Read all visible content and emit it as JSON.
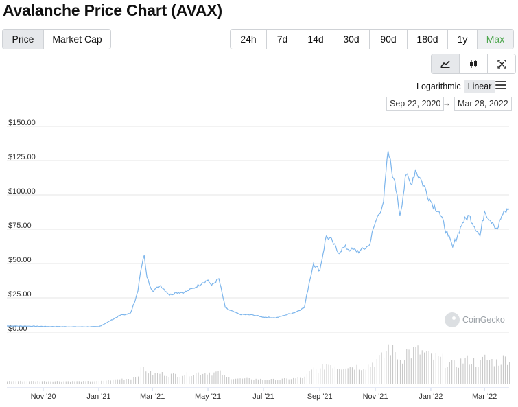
{
  "title": "Avalanche Price Chart (AVAX)",
  "type_tabs": [
    {
      "label": "Price",
      "active": true
    },
    {
      "label": "Market Cap",
      "active": false
    }
  ],
  "range_tabs": [
    {
      "label": "24h"
    },
    {
      "label": "7d"
    },
    {
      "label": "14d"
    },
    {
      "label": "30d"
    },
    {
      "label": "90d"
    },
    {
      "label": "180d"
    },
    {
      "label": "1y"
    },
    {
      "label": "Max",
      "active": true
    }
  ],
  "view_icons": [
    "line-chart-icon",
    "candlestick-icon",
    "fullscreen-icon"
  ],
  "scale": {
    "log": "Logarithmic",
    "linear": "Linear",
    "selected": "Linear"
  },
  "date_from": "Sep 22, 2020",
  "date_to": "Mar 28, 2022",
  "date_arrow": "→",
  "watermark": "CoinGecko",
  "colors": {
    "line": "#7cb5ec",
    "volume": "#c8c8c8",
    "grid": "#e6e6e6",
    "active_range": "#4ca64c"
  },
  "chart_data": {
    "type": "line",
    "y_ticks": [
      "$0.00",
      "$25.00",
      "$50.00",
      "$75.00",
      "$100.00",
      "$125.00",
      "$150.00"
    ],
    "ylim": [
      0,
      150
    ],
    "x_ticks": [
      "Nov '20",
      "Jan '21",
      "Mar '21",
      "May '21",
      "Jul '21",
      "Sep '21",
      "Nov '21",
      "Jan '22",
      "Mar '22"
    ],
    "grid": true,
    "series": [
      {
        "x": [
          "2020-09-22",
          "2020-10-15",
          "2020-11-10",
          "2020-12-10",
          "2021-01-01",
          "2021-01-10",
          "2021-01-25",
          "2021-02-01",
          "2021-02-05",
          "2021-02-08",
          "2021-02-10",
          "2021-02-13",
          "2021-02-16",
          "2021-02-20",
          "2021-02-23",
          "2021-03-01",
          "2021-03-10",
          "2021-03-20",
          "2021-03-27",
          "2021-04-05",
          "2021-04-15",
          "2021-04-25",
          "2021-05-01",
          "2021-05-05",
          "2021-05-13",
          "2021-05-20",
          "2021-05-25",
          "2021-06-05",
          "2021-06-20",
          "2021-07-01",
          "2021-07-15",
          "2021-07-25",
          "2021-08-05",
          "2021-08-15",
          "2021-08-20",
          "2021-08-25",
          "2021-09-01",
          "2021-09-08",
          "2021-09-15",
          "2021-09-21",
          "2021-09-28",
          "2021-10-05",
          "2021-10-15",
          "2021-10-25",
          "2021-11-01",
          "2021-11-10",
          "2021-11-15",
          "2021-11-21",
          "2021-11-25",
          "2021-11-28",
          "2021-12-05",
          "2021-12-10",
          "2021-12-15",
          "2021-12-22",
          "2022-01-01",
          "2022-01-10",
          "2022-01-20",
          "2022-01-25",
          "2022-02-05",
          "2022-02-12",
          "2022-02-24",
          "2022-03-01",
          "2022-03-10",
          "2022-03-15",
          "2022-03-20",
          "2022-03-28"
        ],
        "y": [
          4.5,
          4.4,
          4.1,
          3.9,
          4.0,
          7.0,
          12.5,
          13.0,
          14.0,
          20.0,
          23.0,
          30.0,
          44.0,
          56.0,
          40.0,
          30.0,
          34.0,
          27.0,
          29.0,
          29.0,
          32.0,
          36.0,
          38.0,
          34.0,
          39.0,
          18.0,
          16.0,
          13.0,
          12.5,
          11.0,
          10.5,
          12.5,
          14.5,
          18.0,
          35.0,
          50.0,
          45.0,
          70.0,
          66.0,
          58.0,
          62.0,
          60.0,
          59.0,
          63.0,
          80.0,
          95.0,
          132.0,
          112.0,
          100.0,
          85.0,
          115.0,
          108.0,
          118.0,
          110.0,
          95.0,
          88.0,
          70.0,
          62.0,
          80.0,
          85.0,
          70.0,
          88.0,
          80.0,
          75.0,
          85.0,
          90.0
        ]
      }
    ],
    "volume": {
      "note": "daily trading volume bars; scale not labeled"
    }
  }
}
